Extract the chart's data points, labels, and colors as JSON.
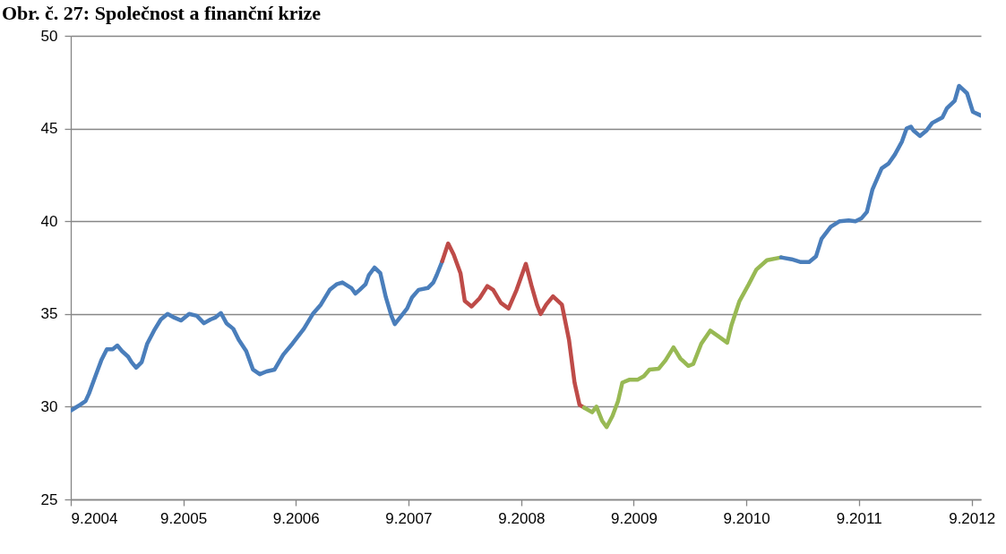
{
  "chart_data": {
    "type": "line",
    "title": "Obr. č. 27: Společnost a finanční krize",
    "xlim": [
      "2004-09-01",
      "2012-10-01"
    ],
    "ylim": [
      25,
      50
    ],
    "xticks": [
      {
        "value": "2004-09-01",
        "label": "9.2004"
      },
      {
        "value": "2005-09-01",
        "label": "9.2005"
      },
      {
        "value": "2006-09-01",
        "label": "9.2006"
      },
      {
        "value": "2007-09-01",
        "label": "9.2007"
      },
      {
        "value": "2008-09-01",
        "label": "9.2008"
      },
      {
        "value": "2009-09-01",
        "label": "9.2009"
      },
      {
        "value": "2010-09-01",
        "label": "9.2010"
      },
      {
        "value": "2011-09-01",
        "label": "9.2011"
      },
      {
        "value": "2012-09-01",
        "label": "9.2012"
      }
    ],
    "yticks": [
      25,
      30,
      35,
      40,
      45,
      50
    ],
    "grid": "y",
    "line_style": "solid",
    "series": [
      {
        "color": "#4a7ebb",
        "x": [
          "2004-09-02",
          "2004-10-01",
          "2004-10-19",
          "2004-10-30",
          "2004-11-21",
          "2004-12-09",
          "2004-12-27",
          "2005-01-15",
          "2005-01-30",
          "2005-02-14",
          "2005-03-06",
          "2005-03-17",
          "2005-04-01",
          "2005-04-19",
          "2005-05-07",
          "2005-05-29",
          "2005-06-20",
          "2005-07-12",
          "2005-08-03",
          "2005-08-25",
          "2005-09-20",
          "2005-10-15",
          "2005-11-07",
          "2005-11-28",
          "2005-12-13",
          "2006-01-01",
          "2006-01-19",
          "2006-02-10",
          "2006-02-28",
          "2006-03-24",
          "2006-04-15",
          "2006-05-07",
          "2006-05-29",
          "2006-06-24",
          "2006-07-22",
          "2006-08-21",
          "2006-09-27",
          "2006-10-26",
          "2006-11-21",
          "2006-12-20",
          "2007-01-11",
          "2007-01-30",
          "2007-02-28",
          "2007-03-13",
          "2007-03-27",
          "2007-04-15",
          "2007-04-26",
          "2007-05-14",
          "2007-06-02",
          "2007-06-20",
          "2007-07-08",
          "2007-07-19",
          "2007-08-07",
          "2007-08-28",
          "2007-09-13",
          "2007-10-04",
          "2007-11-03",
          "2007-11-21",
          "2007-12-02",
          "2007-12-20"
        ],
        "values": [
          29.8,
          30.1,
          30.3,
          30.7,
          31.7,
          32.5,
          33.1,
          33.1,
          33.3,
          33.0,
          32.7,
          32.4,
          32.1,
          32.4,
          33.4,
          34.1,
          34.7,
          35.0,
          34.8,
          34.65,
          35.0,
          34.9,
          34.5,
          34.7,
          34.8,
          35.05,
          34.5,
          34.2,
          33.6,
          33.0,
          32.0,
          31.75,
          31.9,
          32.0,
          32.8,
          33.4,
          34.2,
          35.0,
          35.5,
          36.3,
          36.6,
          36.7,
          36.4,
          36.1,
          36.3,
          36.6,
          37.1,
          37.5,
          37.2,
          35.9,
          34.9,
          34.45,
          34.85,
          35.3,
          35.9,
          36.3,
          36.4,
          36.7,
          37.1,
          37.85
        ]
      },
      {
        "color": "#be4b48",
        "x": [
          "2007-12-20",
          "2008-01-08",
          "2008-01-26",
          "2008-02-17",
          "2008-03-02",
          "2008-03-24",
          "2008-04-19",
          "2008-05-14",
          "2008-06-02",
          "2008-06-27",
          "2008-07-22",
          "2008-08-17",
          "2008-09-16",
          "2008-10-04",
          "2008-10-22",
          "2008-11-03",
          "2008-11-21",
          "2008-12-13",
          "2009-01-11",
          "2009-02-03",
          "2009-02-21",
          "2009-03-09",
          "2009-03-24"
        ],
        "values": [
          37.85,
          38.8,
          38.2,
          37.2,
          35.7,
          35.4,
          35.85,
          36.5,
          36.3,
          35.6,
          35.3,
          36.3,
          37.7,
          36.55,
          35.5,
          35.0,
          35.5,
          35.95,
          35.5,
          33.6,
          31.3,
          30.1,
          29.95
        ]
      },
      {
        "color": "#98b954",
        "x": [
          "2009-03-24",
          "2009-04-19",
          "2009-05-03",
          "2009-05-21",
          "2009-06-05",
          "2009-06-24",
          "2009-07-12",
          "2009-07-26",
          "2009-08-17",
          "2009-09-13",
          "2009-10-04",
          "2009-10-22",
          "2009-11-21",
          "2009-12-13",
          "2010-01-08",
          "2010-01-30",
          "2010-02-25",
          "2010-03-13",
          "2010-04-08",
          "2010-05-07",
          "2010-06-02",
          "2010-07-01",
          "2010-07-15",
          "2010-08-10",
          "2010-09-09",
          "2010-10-04",
          "2010-11-07",
          "2010-12-23"
        ],
        "values": [
          29.95,
          29.7,
          30.0,
          29.25,
          28.9,
          29.5,
          30.3,
          31.3,
          31.45,
          31.45,
          31.65,
          32.0,
          32.05,
          32.5,
          33.2,
          32.6,
          32.2,
          32.3,
          33.4,
          34.1,
          33.8,
          33.45,
          34.4,
          35.7,
          36.6,
          37.4,
          37.9,
          38.05
        ]
      },
      {
        "color": "#4a7ebb",
        "x": [
          "2010-12-23",
          "2011-01-26",
          "2011-02-25",
          "2011-03-24",
          "2011-04-15",
          "2011-05-03",
          "2011-06-02",
          "2011-07-01",
          "2011-07-30",
          "2011-08-21",
          "2011-09-09",
          "2011-09-27",
          "2011-10-15",
          "2011-11-14",
          "2011-12-06",
          "2011-12-27",
          "2012-01-19",
          "2012-02-03",
          "2012-02-17",
          "2012-02-25",
          "2012-03-17",
          "2012-04-08",
          "2012-04-26",
          "2012-05-29",
          "2012-06-13",
          "2012-07-08",
          "2012-07-22",
          "2012-08-17",
          "2012-09-05",
          "2012-10-01"
        ],
        "values": [
          38.05,
          37.95,
          37.8,
          37.8,
          38.1,
          39.05,
          39.7,
          40.0,
          40.05,
          40.0,
          40.15,
          40.5,
          41.7,
          42.85,
          43.1,
          43.6,
          44.3,
          45.0,
          45.1,
          44.9,
          44.6,
          44.9,
          45.3,
          45.6,
          46.1,
          46.5,
          47.3,
          46.9,
          45.9,
          45.7
        ]
      }
    ]
  }
}
